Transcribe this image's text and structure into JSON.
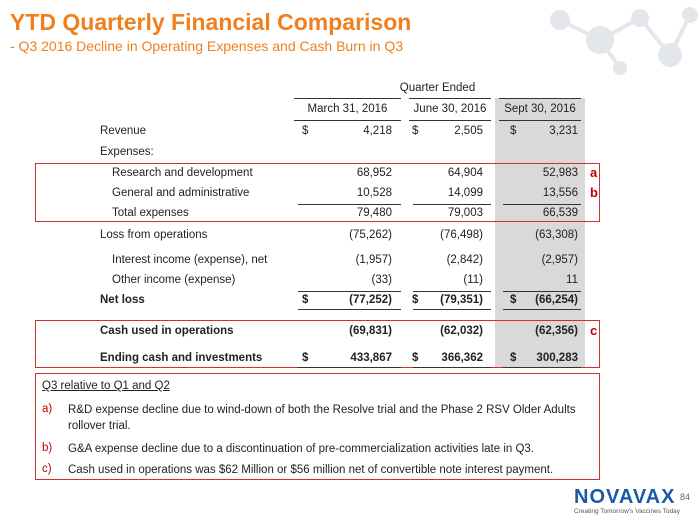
{
  "header": {
    "title": "YTD Quarterly Financial Comparison",
    "subtitle": "- Q3 2016 Decline in Operating Expenses and Cash Burn in Q3"
  },
  "table": {
    "group_header": "Quarter Ended",
    "columns": [
      "March 31, 2016",
      "June 30, 2016",
      "Sept 30, 2016"
    ],
    "rows": [
      {
        "label": "Revenue",
        "currency": "$",
        "values": [
          "4,218",
          "2,505",
          "3,231"
        ]
      },
      {
        "label": "Expenses:"
      },
      {
        "label": "Research and development",
        "values": [
          "68,952",
          "64,904",
          "52,983"
        ],
        "flag": "a"
      },
      {
        "label": "General and administrative",
        "values": [
          "10,528",
          "14,099",
          "13,556"
        ],
        "flag": "b"
      },
      {
        "label": "Total expenses",
        "values": [
          "79,480",
          "79,003",
          "66,539"
        ]
      },
      {
        "label": "Loss from operations",
        "values": [
          "(75,262)",
          "(76,498)",
          "(63,308)"
        ]
      },
      {
        "label": "Interest income (expense), net",
        "values": [
          "(1,957)",
          "(2,842)",
          "(2,957)"
        ]
      },
      {
        "label": "Other income (expense)",
        "values": [
          "(33)",
          "(11)",
          "11"
        ]
      },
      {
        "label": "Net loss",
        "currency": "$",
        "values": [
          "(77,252)",
          "(79,351)",
          "(66,254)"
        ]
      },
      {
        "label": "Cash used in operations",
        "values": [
          "(69,831)",
          "(62,032)",
          "(62,356)"
        ],
        "flag": "c"
      },
      {
        "label": "Ending cash and investments",
        "currency": "$",
        "values": [
          "433,867",
          "366,362",
          "300,283"
        ]
      }
    ]
  },
  "notes": {
    "title": "Q3 relative to Q1 and Q2",
    "items": [
      {
        "marker": "a)",
        "text": "R&D expense decline due to wind-down of both the Resolve trial and the Phase 2 RSV Older Adults rollover trial."
      },
      {
        "marker": "b)",
        "text": "G&A expense decline due to a discontinuation of pre-commercialization activities late in Q3."
      },
      {
        "marker": "c)",
        "text": "Cash used in operations was $62 Million or $56 million net of convertible note interest payment."
      }
    ]
  },
  "footer": {
    "page_number": "84",
    "logo": "NOVAVAX",
    "tagline": "Creating Tomorrow's Vaccines Today"
  }
}
